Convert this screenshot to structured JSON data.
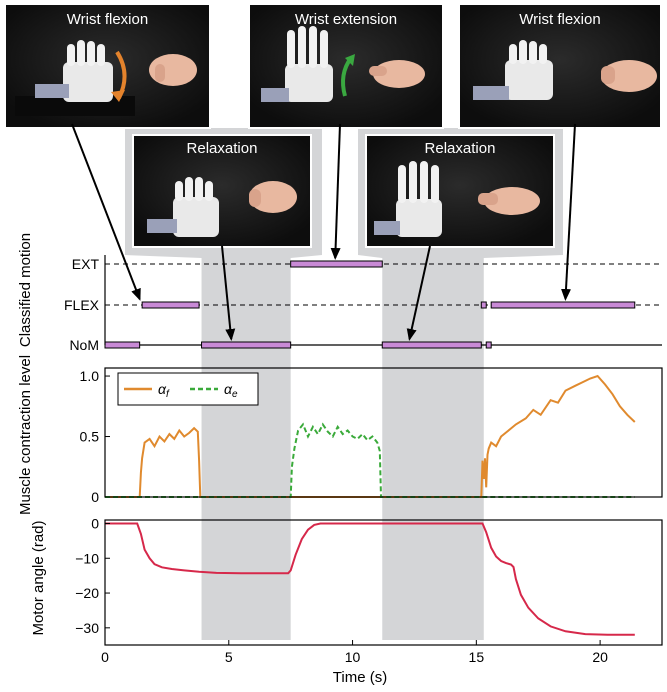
{
  "photos": [
    {
      "label": "Wrist flexion",
      "pointer_time": 1.4,
      "pointer_level": "FLEX"
    },
    {
      "label": "Wrist extension",
      "pointer_time": 9.3,
      "pointer_level": "EXT"
    },
    {
      "label": "Wrist flexion",
      "pointer_time": 18.6,
      "pointer_level": "FLEX"
    },
    {
      "label": "Relaxation",
      "pointer_time": 5.1,
      "pointer_level": "NoM"
    },
    {
      "label": "Relaxation",
      "pointer_time": 12.3,
      "pointer_level": "NoM"
    }
  ],
  "colors": {
    "alpha_f": "#e08a2e",
    "alpha_e": "#3aaa3a",
    "motor": "#d6284a",
    "motion_bar": "#c98ad6",
    "relax_band": "#d4d5d7",
    "photo_bg": "#1a1a1a"
  },
  "chart_data": [
    {
      "type": "timeline",
      "ylabel": "Classified motion",
      "levels": [
        "EXT",
        "FLEX",
        "NoM"
      ],
      "segments": [
        {
          "level": "NoM",
          "start": 0.0,
          "end": 1.4
        },
        {
          "level": "FLEX",
          "start": 1.5,
          "end": 3.8
        },
        {
          "level": "NoM",
          "start": 3.9,
          "end": 7.5
        },
        {
          "level": "EXT",
          "start": 7.5,
          "end": 11.2
        },
        {
          "level": "NoM",
          "start": 11.2,
          "end": 15.2
        },
        {
          "level": "FLEX",
          "start": 15.2,
          "end": 15.4
        },
        {
          "level": "NoM",
          "start": 15.4,
          "end": 15.6
        },
        {
          "level": "FLEX",
          "start": 15.6,
          "end": 21.4
        }
      ],
      "relaxation_bands": [
        [
          3.9,
          7.5
        ],
        [
          11.2,
          15.3
        ]
      ],
      "xlim": [
        0,
        22.5
      ]
    },
    {
      "type": "line",
      "ylabel": "Muscle contraction level",
      "ylim": [
        0,
        1.05
      ],
      "yticks": [
        0,
        0.5,
        1.0
      ],
      "ytick_labels": [
        "0",
        "0.5",
        "1.0"
      ],
      "xlim": [
        0,
        22.5
      ],
      "legend": [
        "α_f",
        "α_e"
      ],
      "legend_position": "top-left",
      "series": [
        {
          "name": "α_f",
          "style": "solid",
          "x": [
            0,
            1.4,
            1.45,
            1.5,
            1.6,
            1.8,
            2.0,
            2.2,
            2.4,
            2.6,
            2.8,
            3.0,
            3.2,
            3.4,
            3.6,
            3.75,
            3.8,
            3.85,
            15.2,
            15.25,
            15.3,
            15.35,
            15.4,
            15.45,
            15.5,
            15.6,
            15.8,
            16.0,
            16.3,
            16.6,
            17.0,
            17.3,
            17.6,
            18.0,
            18.3,
            18.6,
            19.0,
            19.3,
            19.6,
            19.9,
            20.2,
            20.5,
            20.8,
            21.1,
            21.4
          ],
          "y": [
            0,
            0,
            0.2,
            0.32,
            0.45,
            0.48,
            0.42,
            0.5,
            0.46,
            0.52,
            0.48,
            0.55,
            0.5,
            0.53,
            0.57,
            0.54,
            0.3,
            0,
            0,
            0.3,
            0.15,
            0.32,
            0.08,
            0.35,
            0.4,
            0.45,
            0.42,
            0.5,
            0.55,
            0.6,
            0.65,
            0.72,
            0.68,
            0.8,
            0.78,
            0.88,
            0.92,
            0.95,
            0.98,
            1.0,
            0.93,
            0.85,
            0.75,
            0.68,
            0.62
          ]
        },
        {
          "name": "α_e",
          "style": "dashed",
          "x": [
            0,
            7.5,
            7.55,
            7.65,
            7.8,
            8.0,
            8.2,
            8.4,
            8.6,
            8.8,
            9.0,
            9.2,
            9.4,
            9.6,
            9.8,
            10.0,
            10.2,
            10.4,
            10.6,
            10.8,
            11.0,
            11.1,
            11.15,
            21.4
          ],
          "y": [
            0,
            0,
            0.25,
            0.4,
            0.55,
            0.6,
            0.5,
            0.58,
            0.52,
            0.6,
            0.54,
            0.5,
            0.58,
            0.52,
            0.55,
            0.5,
            0.48,
            0.52,
            0.47,
            0.5,
            0.45,
            0.38,
            0,
            0
          ]
        }
      ]
    },
    {
      "type": "line",
      "ylabel": "Motor angle (rad)",
      "xlabel": "Time (s)",
      "ylim": [
        -33.5,
        1
      ],
      "yticks": [
        0,
        -10,
        -20,
        -30
      ],
      "ytick_labels": [
        "0",
        "−10",
        "−20",
        "−30"
      ],
      "xlim": [
        0,
        22.5
      ],
      "xticks": [
        0,
        5,
        10,
        15,
        20
      ],
      "xtick_labels": [
        "0",
        "5",
        "10",
        "15",
        "20"
      ],
      "series": [
        {
          "name": "motor angle",
          "style": "solid",
          "x": [
            0,
            1.3,
            1.45,
            1.6,
            1.8,
            2.0,
            2.3,
            2.7,
            3.2,
            3.8,
            4.5,
            5.5,
            6.5,
            7.4,
            7.5,
            7.7,
            7.95,
            8.2,
            8.45,
            8.7,
            15.25,
            15.4,
            15.6,
            15.8,
            16.0,
            16.2,
            16.4,
            16.5,
            16.6,
            16.8,
            17.1,
            17.5,
            18.0,
            18.6,
            19.4,
            20.3,
            21.4
          ],
          "y": [
            0,
            0,
            -3,
            -7.5,
            -10,
            -11.7,
            -12.6,
            -13.1,
            -13.5,
            -13.9,
            -14.2,
            -14.3,
            -14.3,
            -14.3,
            -13.5,
            -9,
            -4.5,
            -1.8,
            -0.4,
            0,
            0,
            -2.5,
            -7,
            -9.5,
            -10.8,
            -11.4,
            -11.8,
            -12.5,
            -16,
            -20.5,
            -24.2,
            -27.3,
            -29.6,
            -31,
            -31.8,
            -32.0,
            -32.0
          ]
        }
      ]
    }
  ]
}
